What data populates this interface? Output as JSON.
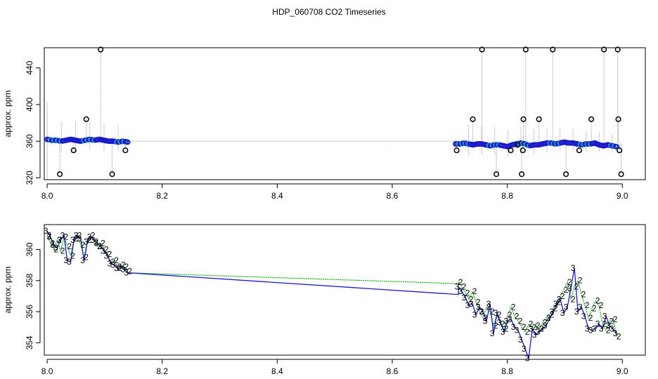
{
  "title": "HDP_060708  CO2 Timeseries",
  "chart_data": [
    {
      "type": "scatter",
      "panel": "top",
      "ylabel": "approx. ppm",
      "xlim": [
        7.995,
        9.04
      ],
      "ylim": [
        318,
        462
      ],
      "x_ticks": [
        8.0,
        8.2,
        8.4,
        8.6,
        8.8,
        9.0
      ],
      "x_tick_labels": [
        "8.0",
        "8.2",
        "8.4",
        "8.6",
        "8.8",
        "9.0"
      ],
      "y_ticks": [
        320,
        360,
        400,
        440
      ],
      "y_tick_labels": [
        "320",
        "360",
        "400",
        "440"
      ],
      "grid": false,
      "colors": {
        "spikes": "#999999",
        "series": "#1a1acc",
        "series_alt": "#22b3b3",
        "outliers": "#000000"
      },
      "segments": [
        {
          "x_start": 8.0,
          "x_end": 8.14,
          "y": [
            362,
            361,
            361,
            360,
            361,
            362,
            361,
            360,
            361,
            362,
            361,
            362,
            361,
            360,
            360,
            359,
            360,
            359
          ]
        },
        {
          "x_start": 8.71,
          "x_end": 8.99,
          "y": [
            357,
            357,
            358,
            357,
            356,
            357,
            357,
            356,
            355,
            356,
            356,
            355,
            354,
            356,
            357,
            358,
            357,
            355,
            356,
            356,
            357,
            358,
            358,
            357,
            358,
            359,
            358,
            358,
            357,
            356,
            357,
            357,
            358,
            356,
            355,
            356,
            355,
            354
          ]
        }
      ],
      "gap_line": {
        "x": [
          8.14,
          8.71
        ],
        "y": [
          360,
          360
        ]
      },
      "outliers": [
        {
          "x": 8.022,
          "y": 324
        },
        {
          "x": 8.046,
          "y": 350
        },
        {
          "x": 8.068,
          "y": 384
        },
        {
          "x": 8.093,
          "y": 460
        },
        {
          "x": 8.113,
          "y": 324
        },
        {
          "x": 8.136,
          "y": 350
        },
        {
          "x": 8.712,
          "y": 350
        },
        {
          "x": 8.74,
          "y": 384
        },
        {
          "x": 8.756,
          "y": 460
        },
        {
          "x": 8.781,
          "y": 324
        },
        {
          "x": 8.806,
          "y": 350
        },
        {
          "x": 8.818,
          "y": 356
        },
        {
          "x": 8.825,
          "y": 324
        },
        {
          "x": 8.827,
          "y": 350
        },
        {
          "x": 8.828,
          "y": 384
        },
        {
          "x": 8.832,
          "y": 460
        },
        {
          "x": 8.855,
          "y": 384
        },
        {
          "x": 8.879,
          "y": 460
        },
        {
          "x": 8.902,
          "y": 324
        },
        {
          "x": 8.925,
          "y": 350
        },
        {
          "x": 8.946,
          "y": 384
        },
        {
          "x": 8.968,
          "y": 460
        },
        {
          "x": 8.992,
          "y": 460
        },
        {
          "x": 8.993,
          "y": 384
        },
        {
          "x": 8.995,
          "y": 350
        },
        {
          "x": 8.998,
          "y": 324
        }
      ]
    },
    {
      "type": "line",
      "panel": "bottom",
      "ylabel": "approx. ppm",
      "xlim": [
        7.995,
        9.04
      ],
      "ylim": [
        353.2,
        361.6
      ],
      "x_ticks": [
        8.0,
        8.2,
        8.4,
        8.6,
        8.8,
        9.0
      ],
      "x_tick_labels": [
        "8.0",
        "8.2",
        "8.4",
        "8.6",
        "8.8",
        "9.0"
      ],
      "y_ticks": [
        354,
        356,
        358,
        360
      ],
      "y_tick_labels": [
        "354",
        "356",
        "358",
        "360"
      ],
      "grid": false,
      "series": [
        {
          "marker": "2",
          "color": "#11aa11",
          "segments": [
            {
              "x_start": 8.0,
              "x_end": 8.14,
              "y": [
                360.9,
                360.4,
                360.0,
                360.6,
                359.9,
                360.8,
                360.2,
                359.6,
                360.7,
                360.9,
                360.3,
                359.5,
                360.6,
                360.9,
                360.5,
                360.2,
                360.4,
                360.0,
                359.7,
                359.2,
                359.3,
                358.8,
                359.0,
                358.9,
                358.6
              ]
            },
            {
              "x_start": 8.14,
              "x_end": 8.715,
              "y": [
                358.5,
                357.8
              ]
            },
            {
              "x_start": 8.715,
              "x_end": 8.99,
              "y": [
                357.9,
                357.6,
                357.2,
                356.8,
                357.3,
                356.6,
                356.0,
                355.6,
                356.3,
                356.0,
                355.1,
                355.8,
                355.2,
                354.9,
                355.8,
                356.3,
                355.7,
                355.4,
                355.0,
                354.7,
                355.2,
                355.0,
                355.1,
                354.9,
                355.3,
                355.6,
                355.8,
                356.2,
                356.6,
                357.0,
                357.4,
                357.9,
                356.8,
                357.6,
                358.0,
                357.1,
                356.4,
                355.6,
                356.2,
                356.7,
                356.4,
                355.2,
                354.8,
                355.4,
                355.5,
                354.4
              ]
            }
          ]
        },
        {
          "marker": "3",
          "color": "#1a1acc",
          "segments": [
            {
              "x_start": 8.0,
              "x_end": 8.14,
              "y": [
                361.2,
                360.8,
                360.3,
                360.1,
                360.6,
                360.9,
                359.3,
                359.2,
                360.6,
                360.9,
                360.7,
                359.3,
                360.5,
                360.8,
                360.6,
                360.4,
                360.2,
                359.9,
                359.6,
                359.1,
                359.0,
                358.8,
                358.9,
                358.7,
                358.5
              ]
            },
            {
              "x_start": 8.14,
              "x_end": 8.715,
              "y": [
                358.5,
                357.1
              ]
            },
            {
              "x_start": 8.715,
              "x_end": 8.99,
              "y": [
                357.6,
                357.3,
                356.9,
                356.4,
                356.5,
                355.8,
                356.3,
                356.0,
                355.4,
                356.5,
                354.6,
                355.9,
                355.3,
                354.7,
                355.4,
                355.5,
                355.0,
                354.8,
                354.2,
                353.6,
                353.0,
                354.9,
                354.5,
                354.7,
                354.9,
                355.1,
                355.6,
                356.0,
                356.5,
                356.8,
                355.9,
                356.3,
                357.5,
                358.8,
                356.0,
                356.3,
                355.7,
                354.9,
                354.8,
                354.9,
                355.2,
                354.9,
                355.7,
                355.1,
                354.9,
                354.6
              ]
            }
          ]
        }
      ]
    }
  ]
}
